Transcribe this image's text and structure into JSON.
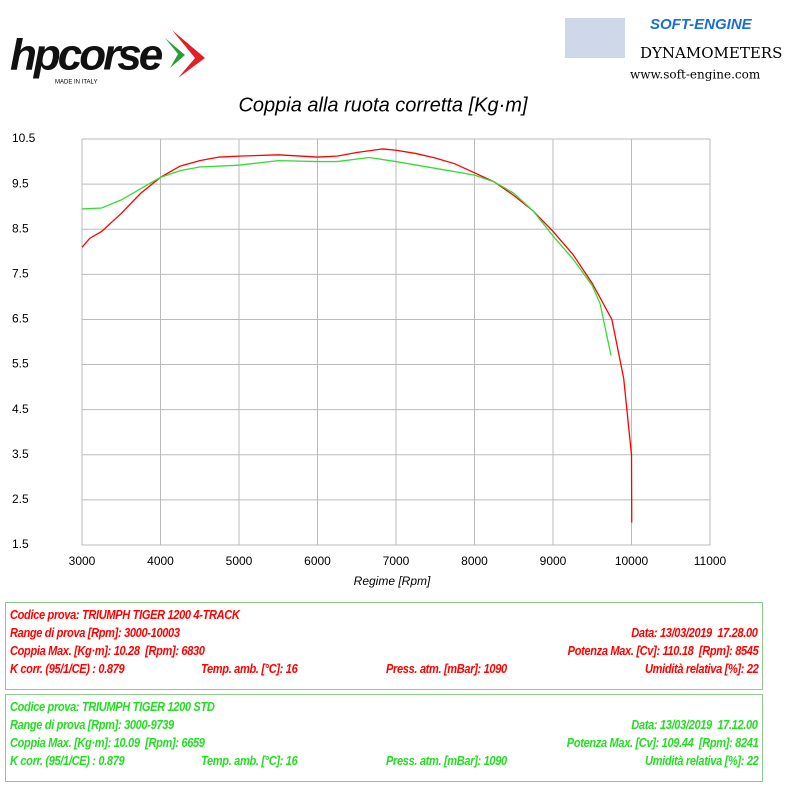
{
  "header": {
    "brand": "hpcorse",
    "brand_sub": "MADE IN ITALY",
    "dyno_brand": "SOFT-ENGINE",
    "dyno_title": "DYNAMOMETERS",
    "dyno_url": "www.soft-engine.com"
  },
  "chart_data": {
    "type": "line",
    "title": "Coppia alla ruota corretta [Kg·m]",
    "x_label": "Regime [Rpm]",
    "xlim": [
      3000,
      11000
    ],
    "ylim": [
      1.5,
      10.5
    ],
    "xticks": [
      3000,
      4000,
      5000,
      6000,
      7000,
      8000,
      9000,
      10000,
      11000
    ],
    "yticks": [
      10.5,
      9.5,
      8.5,
      7.5,
      6.5,
      5.5,
      4.5,
      3.5,
      2.5,
      1.5
    ],
    "grid": true,
    "series": [
      {
        "color": "#ff0000",
        "x": [
          3000,
          3100,
          3250,
          3500,
          3750,
          4000,
          4250,
          4500,
          4750,
          5000,
          5500,
          6000,
          6250,
          6500,
          6830,
          7000,
          7250,
          7500,
          7750,
          8000,
          8250,
          8500,
          8750,
          9000,
          9250,
          9500,
          9750,
          9900,
          10000,
          10003
        ],
        "values": [
          8.1,
          8.3,
          8.45,
          8.85,
          9.3,
          9.65,
          9.9,
          10.02,
          10.1,
          10.12,
          10.15,
          10.1,
          10.12,
          10.2,
          10.28,
          10.25,
          10.18,
          10.08,
          9.95,
          9.75,
          9.55,
          9.25,
          8.9,
          8.45,
          7.95,
          7.3,
          6.5,
          5.2,
          3.5,
          2.0
        ]
      },
      {
        "color": "#33dd33",
        "x": [
          3000,
          3250,
          3500,
          3750,
          4000,
          4250,
          4500,
          5000,
          5500,
          6000,
          6250,
          6659,
          7000,
          7500,
          8000,
          8250,
          8500,
          8750,
          9000,
          9250,
          9500,
          9600,
          9739
        ],
        "values": [
          8.95,
          8.97,
          9.15,
          9.4,
          9.65,
          9.8,
          9.88,
          9.92,
          10.02,
          10.0,
          10.0,
          10.09,
          10.0,
          9.85,
          9.7,
          9.55,
          9.3,
          8.9,
          8.35,
          7.85,
          7.25,
          6.85,
          5.7
        ]
      }
    ]
  },
  "tests": [
    {
      "color": "#ff0000",
      "code": "Codice prova: TRIUMPH TIGER 1200 4-TRACK",
      "range": "Range di prova [Rpm]: 3000-10003",
      "date": "Data: 13/03/2019  17.28.00",
      "torque": "Coppia Max. [Kg·m]: 10.28  [Rpm]: 6830",
      "power": "Potenza Max. [Cv]: 110.18  [Rpm]: 8545",
      "k": "K corr. (95/1/CE) : 0.879",
      "temp": "Temp. amb. [°C]: 16",
      "press": "Press. atm. [mBar]: 1090",
      "humidity": "Umidità relativa [%]: 22"
    },
    {
      "color": "#22dd22",
      "code": "Codice prova: TRIUMPH TIGER 1200 STD",
      "range": "Range di prova [Rpm]: 3000-9739",
      "date": "Data: 13/03/2019  17.12.00",
      "torque": "Coppia Max. [Kg·m]: 10.09  [Rpm]: 6659",
      "power": "Potenza Max. [Cv]: 109.44  [Rpm]: 8241",
      "k": "K corr. (95/1/CE) : 0.879",
      "temp": "Temp. amb. [°C]: 16",
      "press": "Press. atm. [mBar]: 1090",
      "humidity": "Umidità relativa [%]: 22"
    }
  ]
}
